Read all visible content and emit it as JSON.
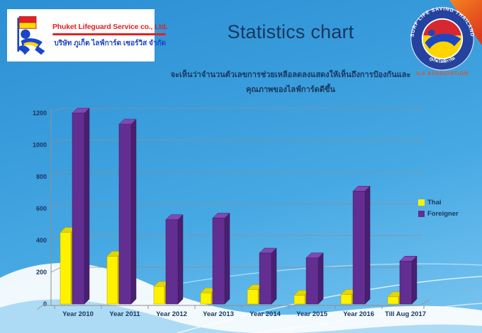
{
  "header": {
    "logo": {
      "title": "Phuket Lifeguard Service co., Ltd.",
      "subtitle_thai": "บริษัท ภูเก็ต ไลฟ์การ์ด เซอร์วิส จำกัด"
    },
    "title": "Statistics chart",
    "subtitle_line1": "จะเห็นว่าจำนวนตัวเลขการช่วยเหลือลดลงแสดงให้เห็นถึงการป้องกันและ",
    "subtitle_line2": "คุณภาพของไลฟ์การ์ดดีขึ้น",
    "badge": {
      "ring_text_top": "SURF LIFE SAVING THAILAND",
      "ring_text_bottom": "ภูเก็ตไลฟ์การ์ด",
      "association": "ILS ASSOCIATION"
    }
  },
  "chart_data": {
    "type": "bar",
    "style": "3d-column",
    "title": "Statistics chart",
    "categories": [
      "Year 2010",
      "Year 2011",
      "Year 2012",
      "Year 2013",
      "Year 2014",
      "Year 2015",
      "Year 2016",
      "Till Aug 2017"
    ],
    "series": [
      {
        "name": "Thai",
        "color": "#FFF200",
        "values": [
          450,
          300,
          110,
          70,
          90,
          55,
          60,
          45
        ]
      },
      {
        "name": "Foreigner",
        "color": "#632E91",
        "values": [
          1200,
          1130,
          530,
          540,
          320,
          290,
          710,
          270
        ]
      }
    ],
    "xlabel": "",
    "ylabel": "",
    "ylim": [
      0,
      1200
    ],
    "ytick_interval": 200,
    "ytick_labels": [
      "0",
      "200",
      "400",
      "600",
      "800",
      "1000",
      "1200"
    ],
    "grid": true,
    "legend_position": "right"
  },
  "colors": {
    "background_top": "#2B8FD3",
    "background_bottom": "#7EC6EF",
    "title_text": "#17375E",
    "gridline": "#8F8F8F",
    "thai_bar": "#FFF200",
    "foreigner_bar": "#632E91",
    "logo_red": "#E02325",
    "logo_blue": "#1B46C8",
    "corner_orange": "#F5821F",
    "ils_orange": "#E8501E"
  }
}
